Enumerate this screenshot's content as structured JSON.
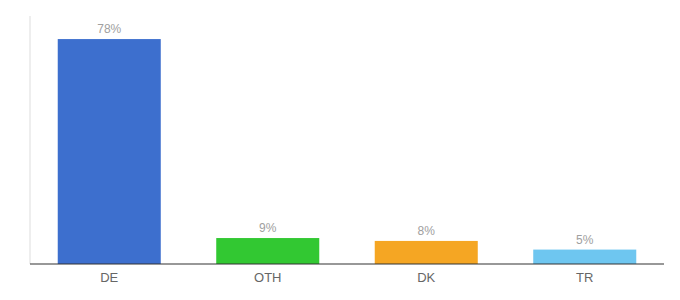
{
  "chart_data": {
    "type": "bar",
    "categories": [
      "DE",
      "OTH",
      "DK",
      "TR"
    ],
    "values": [
      78,
      9,
      8,
      5
    ],
    "value_labels": [
      "78%",
      "9%",
      "8%",
      "5%"
    ],
    "colors": [
      "#3d6fce",
      "#32c832",
      "#f5a623",
      "#6ec6f0"
    ],
    "ylim": [
      0,
      86
    ],
    "data_labels": true,
    "tick_labels": "x",
    "grid": false
  }
}
